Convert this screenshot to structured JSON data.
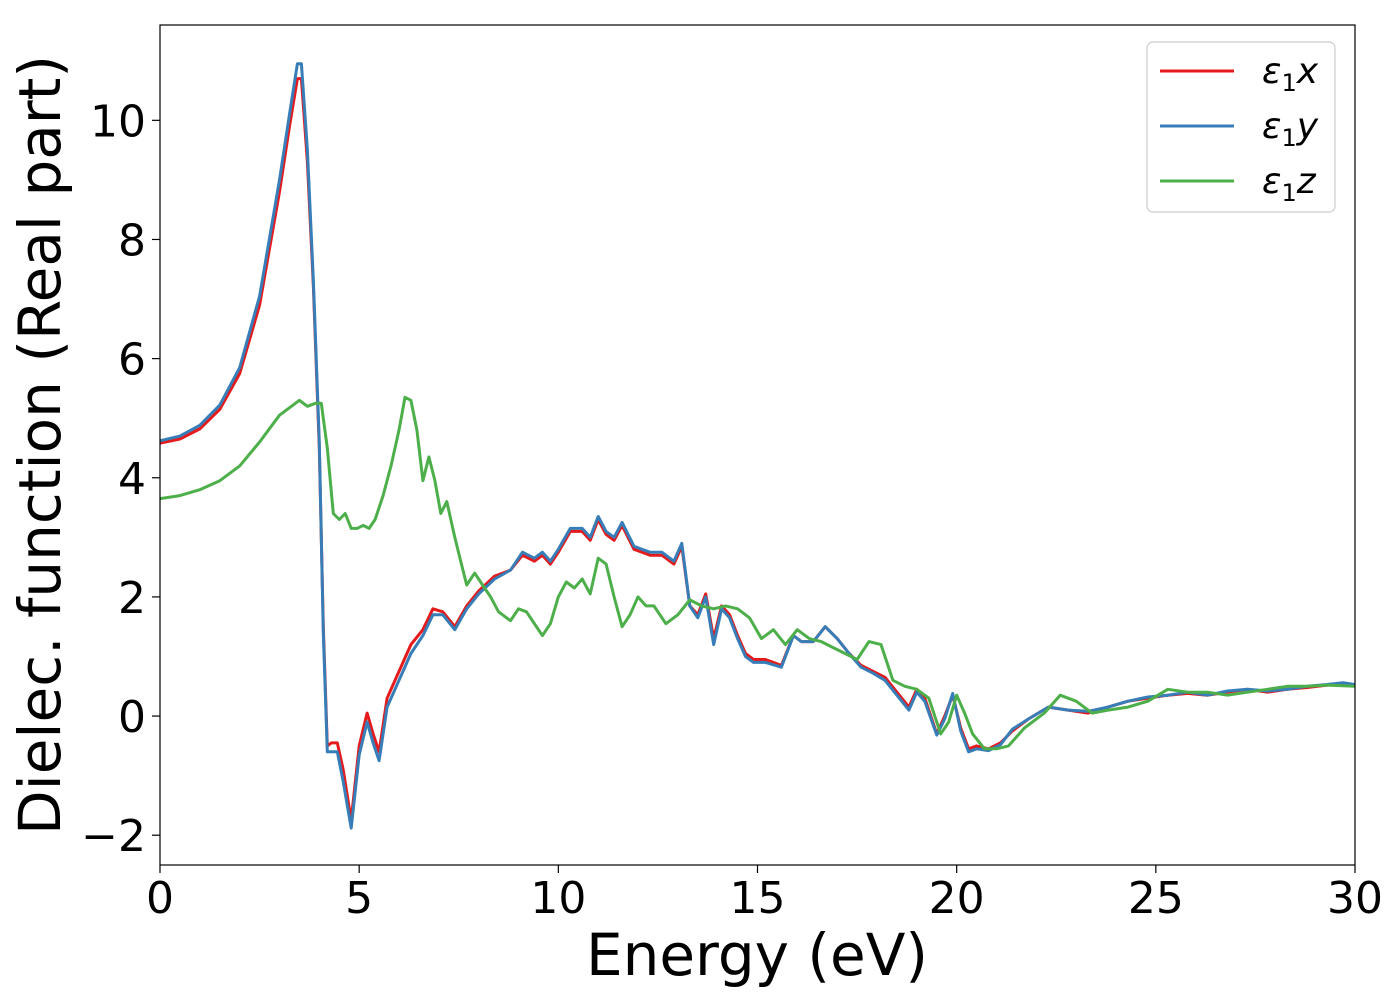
{
  "chart_data": {
    "type": "line",
    "xlabel": "Energy (eV)",
    "ylabel": "Dielec. function (Real part)",
    "xlim": [
      0,
      30
    ],
    "ylim": [
      -2.5,
      11.6
    ],
    "xticks": [
      0,
      5,
      10,
      15,
      20,
      25,
      30
    ],
    "xtick_labels": [
      "0",
      "5",
      "10",
      "15",
      "20",
      "25",
      "30"
    ],
    "yticks": [
      -2,
      0,
      2,
      4,
      6,
      8,
      10
    ],
    "ytick_labels": [
      "−2",
      "0",
      "2",
      "4",
      "6",
      "8",
      "10"
    ],
    "grid": false,
    "legend_position": "top-right",
    "series": [
      {
        "name": "ε₁x",
        "legend_main": "ε",
        "legend_sub": "1",
        "legend_tail": "x",
        "color": "#e41a1c",
        "x": [
          0,
          0.5,
          1.0,
          1.5,
          2.0,
          2.5,
          3.0,
          3.25,
          3.45,
          3.55,
          3.7,
          3.85,
          4.0,
          4.1,
          4.2,
          4.3,
          4.45,
          4.6,
          4.8,
          5.0,
          5.2,
          5.35,
          5.5,
          5.7,
          6.0,
          6.3,
          6.6,
          6.85,
          7.1,
          7.4,
          7.7,
          8.0,
          8.4,
          8.8,
          9.1,
          9.4,
          9.6,
          9.8,
          10.0,
          10.3,
          10.6,
          10.8,
          11.0,
          11.2,
          11.4,
          11.6,
          11.9,
          12.1,
          12.3,
          12.6,
          12.9,
          13.1,
          13.3,
          13.5,
          13.7,
          13.9,
          14.1,
          14.3,
          14.5,
          14.7,
          14.9,
          15.2,
          15.6,
          15.9,
          16.1,
          16.4,
          16.7,
          17.0,
          17.3,
          17.6,
          17.9,
          18.2,
          18.5,
          18.8,
          19.0,
          19.2,
          19.5,
          19.7,
          19.9,
          20.1,
          20.3,
          20.5,
          20.8,
          21.1,
          21.4,
          21.8,
          22.3,
          22.8,
          23.3,
          23.8,
          24.3,
          24.8,
          25.3,
          25.8,
          26.3,
          26.8,
          27.3,
          27.8,
          28.3,
          28.8,
          29.3,
          29.7,
          30.0
        ],
        "values": [
          4.58,
          4.65,
          4.82,
          5.15,
          5.75,
          6.9,
          8.8,
          9.9,
          10.7,
          10.7,
          9.3,
          7.2,
          4.5,
          1.5,
          -0.5,
          -0.45,
          -0.45,
          -0.9,
          -1.75,
          -0.5,
          0.05,
          -0.3,
          -0.6,
          0.3,
          0.75,
          1.2,
          1.45,
          1.8,
          1.75,
          1.5,
          1.85,
          2.1,
          2.35,
          2.45,
          2.7,
          2.6,
          2.7,
          2.55,
          2.75,
          3.1,
          3.1,
          2.95,
          3.3,
          3.05,
          2.95,
          3.2,
          2.8,
          2.75,
          2.7,
          2.7,
          2.55,
          2.85,
          1.85,
          1.7,
          2.05,
          1.3,
          1.85,
          1.7,
          1.35,
          1.05,
          0.95,
          0.95,
          0.85,
          1.35,
          1.25,
          1.25,
          1.5,
          1.3,
          1.05,
          0.85,
          0.75,
          0.65,
          0.4,
          0.15,
          0.45,
          0.3,
          -0.3,
          0.0,
          0.35,
          -0.2,
          -0.55,
          -0.5,
          -0.55,
          -0.45,
          -0.25,
          -0.05,
          0.15,
          0.1,
          0.05,
          0.15,
          0.25,
          0.3,
          0.35,
          0.38,
          0.35,
          0.4,
          0.45,
          0.4,
          0.45,
          0.48,
          0.52,
          0.55,
          0.52
        ]
      },
      {
        "name": "ε₁y",
        "legend_main": "ε",
        "legend_sub": "1",
        "legend_tail": "y",
        "color": "#377eb8",
        "x": [
          0,
          0.5,
          1.0,
          1.5,
          2.0,
          2.5,
          3.0,
          3.25,
          3.45,
          3.55,
          3.7,
          3.85,
          4.0,
          4.1,
          4.2,
          4.3,
          4.45,
          4.6,
          4.8,
          5.0,
          5.2,
          5.35,
          5.5,
          5.7,
          6.0,
          6.3,
          6.6,
          6.85,
          7.1,
          7.4,
          7.7,
          8.0,
          8.4,
          8.8,
          9.1,
          9.4,
          9.6,
          9.8,
          10.0,
          10.3,
          10.6,
          10.8,
          11.0,
          11.2,
          11.4,
          11.6,
          11.9,
          12.1,
          12.3,
          12.6,
          12.9,
          13.1,
          13.3,
          13.5,
          13.7,
          13.9,
          14.1,
          14.3,
          14.5,
          14.7,
          14.9,
          15.2,
          15.6,
          15.9,
          16.1,
          16.4,
          16.7,
          17.0,
          17.3,
          17.6,
          17.9,
          18.2,
          18.5,
          18.8,
          19.0,
          19.2,
          19.5,
          19.7,
          19.9,
          20.1,
          20.3,
          20.5,
          20.8,
          21.1,
          21.4,
          21.8,
          22.3,
          22.8,
          23.3,
          23.8,
          24.3,
          24.8,
          25.3,
          25.8,
          26.3,
          26.8,
          27.3,
          27.8,
          28.3,
          28.8,
          29.3,
          29.7,
          30.0
        ],
        "values": [
          4.62,
          4.7,
          4.88,
          5.22,
          5.85,
          7.05,
          9.0,
          10.1,
          10.95,
          10.95,
          9.5,
          7.3,
          4.6,
          1.4,
          -0.6,
          -0.6,
          -0.6,
          -1.1,
          -1.88,
          -0.65,
          -0.1,
          -0.45,
          -0.75,
          0.15,
          0.6,
          1.05,
          1.35,
          1.7,
          1.7,
          1.45,
          1.8,
          2.05,
          2.3,
          2.45,
          2.75,
          2.65,
          2.75,
          2.6,
          2.8,
          3.15,
          3.15,
          3.0,
          3.35,
          3.1,
          3.0,
          3.25,
          2.85,
          2.8,
          2.75,
          2.75,
          2.6,
          2.9,
          1.85,
          1.65,
          2.0,
          1.2,
          1.8,
          1.65,
          1.3,
          1.0,
          0.9,
          0.9,
          0.82,
          1.35,
          1.25,
          1.25,
          1.5,
          1.3,
          1.05,
          0.82,
          0.72,
          0.6,
          0.35,
          0.1,
          0.4,
          0.25,
          -0.32,
          -0.05,
          0.38,
          -0.25,
          -0.6,
          -0.55,
          -0.58,
          -0.48,
          -0.22,
          -0.05,
          0.15,
          0.1,
          0.08,
          0.15,
          0.25,
          0.32,
          0.35,
          0.4,
          0.35,
          0.42,
          0.45,
          0.42,
          0.45,
          0.5,
          0.53,
          0.56,
          0.53
        ]
      },
      {
        "name": "ε₁z",
        "legend_main": "ε",
        "legend_sub": "1",
        "legend_tail": "z",
        "color": "#4daf4a",
        "x": [
          0,
          0.5,
          1.0,
          1.5,
          2.0,
          2.5,
          3.0,
          3.3,
          3.5,
          3.7,
          3.9,
          4.05,
          4.2,
          4.35,
          4.5,
          4.65,
          4.8,
          4.95,
          5.1,
          5.25,
          5.4,
          5.6,
          5.8,
          6.0,
          6.15,
          6.3,
          6.45,
          6.6,
          6.75,
          6.9,
          7.05,
          7.2,
          7.4,
          7.55,
          7.7,
          7.9,
          8.1,
          8.3,
          8.5,
          8.8,
          9.0,
          9.2,
          9.4,
          9.6,
          9.8,
          10.0,
          10.2,
          10.4,
          10.6,
          10.8,
          11.0,
          11.2,
          11.4,
          11.6,
          11.8,
          12.0,
          12.2,
          12.4,
          12.7,
          13.0,
          13.3,
          13.6,
          13.9,
          14.2,
          14.5,
          14.8,
          15.1,
          15.4,
          15.7,
          16.0,
          16.3,
          16.6,
          16.9,
          17.2,
          17.5,
          17.8,
          18.1,
          18.4,
          18.7,
          19.0,
          19.3,
          19.6,
          19.8,
          20.0,
          20.2,
          20.4,
          20.7,
          21.0,
          21.3,
          21.7,
          22.2,
          22.6,
          23.0,
          23.4,
          23.8,
          24.3,
          24.8,
          25.3,
          25.8,
          26.3,
          26.8,
          27.3,
          27.8,
          28.3,
          28.8,
          29.3,
          30.0
        ],
        "values": [
          3.65,
          3.7,
          3.8,
          3.95,
          4.2,
          4.6,
          5.05,
          5.2,
          5.3,
          5.2,
          5.25,
          5.25,
          4.5,
          3.4,
          3.3,
          3.4,
          3.15,
          3.15,
          3.2,
          3.15,
          3.3,
          3.7,
          4.2,
          4.8,
          5.35,
          5.3,
          4.8,
          3.95,
          4.35,
          3.95,
          3.4,
          3.6,
          3.0,
          2.6,
          2.2,
          2.4,
          2.2,
          2.0,
          1.75,
          1.6,
          1.8,
          1.75,
          1.55,
          1.35,
          1.55,
          2.0,
          2.25,
          2.15,
          2.3,
          2.05,
          2.65,
          2.55,
          2.0,
          1.5,
          1.7,
          2.0,
          1.85,
          1.85,
          1.55,
          1.7,
          1.95,
          1.85,
          1.8,
          1.85,
          1.8,
          1.65,
          1.3,
          1.45,
          1.2,
          1.45,
          1.3,
          1.25,
          1.15,
          1.05,
          0.95,
          1.25,
          1.2,
          0.6,
          0.5,
          0.45,
          0.3,
          -0.3,
          -0.1,
          0.35,
          0.05,
          -0.3,
          -0.55,
          -0.55,
          -0.5,
          -0.2,
          0.05,
          0.35,
          0.25,
          0.05,
          0.1,
          0.15,
          0.25,
          0.45,
          0.4,
          0.4,
          0.35,
          0.4,
          0.45,
          0.5,
          0.5,
          0.52,
          0.5
        ]
      }
    ]
  }
}
